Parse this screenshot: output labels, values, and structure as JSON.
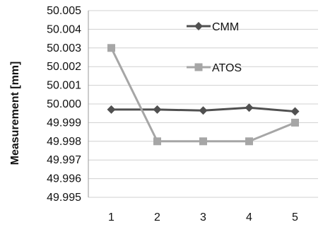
{
  "chart_data": {
    "type": "line",
    "title": "",
    "xlabel": "",
    "ylabel": "Measurement [mm]",
    "ylim": [
      49.995,
      50.005
    ],
    "categories": [
      "1",
      "2",
      "3",
      "4",
      "5"
    ],
    "y_ticks": [
      "50.005",
      "50.004",
      "50.003",
      "50.002",
      "50.001",
      "50.000",
      "49.999",
      "49.998",
      "49.997",
      "49.996",
      "49.995"
    ],
    "grid": "horizontal",
    "legend": "inside-top-center",
    "series": [
      {
        "name": "CMM",
        "marker": "diamond",
        "color": "#505050",
        "values": [
          49.9997,
          49.9997,
          49.99965,
          49.9998,
          49.9996
        ]
      },
      {
        "name": "ATOS",
        "marker": "square",
        "color": "#a6a6a6",
        "values": [
          50.003,
          49.998,
          49.998,
          49.998,
          49.999
        ]
      }
    ]
  }
}
